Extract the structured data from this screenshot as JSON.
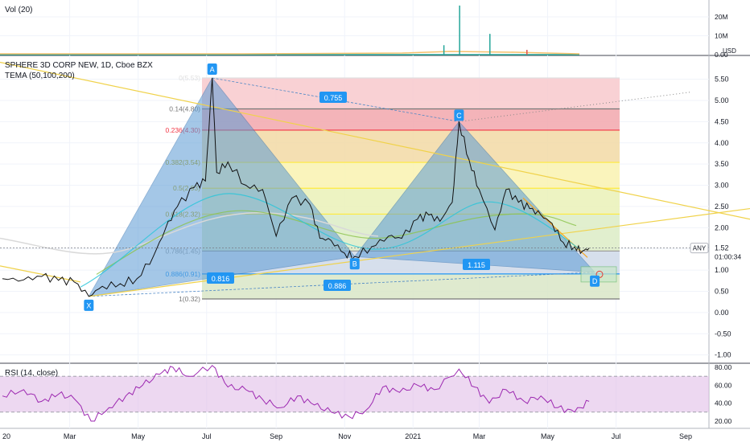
{
  "header": {
    "symbol": "SPHERE 3D CORP NEW, 1D, Cboe BZX",
    "tema": "TEMA (50,100,200)",
    "vol": "Vol (20)",
    "rsi": "RSI (14, close)"
  },
  "price_axis": {
    "ticks": [
      "5.50",
      "5.00",
      "4.50",
      "4.00",
      "3.50",
      "3.00",
      "2.50",
      "2.00",
      "1.50",
      "1.00",
      "0.50",
      "0.00",
      "-0.50",
      "-1.00"
    ],
    "currency": "USD",
    "last_price": "1.52",
    "countdown": "01:00:34",
    "symbol_tag": "ANY"
  },
  "volume_axis": {
    "ticks": [
      "20M",
      "10M",
      "0.00"
    ]
  },
  "rsi_axis": {
    "ticks": [
      "80.00",
      "60.00",
      "40.00",
      "20.00"
    ]
  },
  "time_axis": [
    "20",
    "Mar",
    "May",
    "Jul",
    "Sep",
    "Nov",
    "2021",
    "Mar",
    "May",
    "Jul",
    "Sep"
  ],
  "pattern_points": [
    "X",
    "A",
    "B",
    "C",
    "D"
  ],
  "ratios": {
    "xb": "0.755",
    "ac": "0.816",
    "bd": "0.886",
    "cd": "1.115"
  },
  "fib_levels": [
    {
      "label": "0(5.53)",
      "price": 5.53,
      "color": "#e0e0e0"
    },
    {
      "label": "0.14(4.80)",
      "price": 4.8,
      "color": "#787878"
    },
    {
      "label": "0.236(4.30)",
      "price": 4.3,
      "color": "#f23645"
    },
    {
      "label": "0.382(3.54)",
      "price": 3.54,
      "color": "#ffeb3b"
    },
    {
      "label": "0.5(2.93)",
      "price": 2.93,
      "color": "#ffeb3b"
    },
    {
      "label": "0.618(2.32)",
      "price": 2.32,
      "color": "#ffeb3b"
    },
    {
      "label": "0.786(1.45)",
      "price": 1.45,
      "color": "#9e9e9e"
    },
    {
      "label": "0.886(0.91)",
      "price": 0.91,
      "color": "#2196f3"
    },
    {
      "label": "1(0.32)",
      "price": 0.32,
      "color": "#787878"
    }
  ],
  "colors": {
    "price_line": "#111111",
    "pattern_fill": "#5b9bd5",
    "label_bg": "#2196f3",
    "rsi_line": "#9c27b0",
    "rsi_band": "#e1bee7",
    "trend": "#f0d24a",
    "tema_white": "#d9d9d9"
  },
  "chart_data": [
    {
      "type": "line",
      "title": "SPHERE 3D CORP NEW, 1D, Cboe BZX",
      "x_range": [
        "2020-01-01",
        "2021-09-30"
      ],
      "ylim": [
        -1.0,
        5.75
      ],
      "series": [
        {
          "name": "",
          "points": [
            [
              "2020-01-01",
              0.8
            ],
            [
              "2020-01-20",
              0.77
            ],
            [
              "2020-02-05",
              0.85
            ],
            [
              "2020-02-20",
              0.76
            ],
            [
              "2020-03-05",
              0.72
            ],
            [
              "2020-03-18",
              0.38
            ],
            [
              "2020-03-30",
              0.62
            ],
            [
              "2020-04-15",
              0.68
            ],
            [
              "2020-04-30",
              0.8
            ],
            [
              "2020-05-15",
              1.35
            ],
            [
              "2020-05-25",
              1.95
            ],
            [
              "2020-06-05",
              2.5
            ],
            [
              "2020-06-20",
              2.95
            ],
            [
              "2020-06-30",
              3.1
            ],
            [
              "2020-07-06",
              5.53
            ],
            [
              "2020-07-10",
              3.3
            ],
            [
              "2020-07-20",
              3.55
            ],
            [
              "2020-08-05",
              3.0
            ],
            [
              "2020-08-20",
              2.9
            ],
            [
              "2020-09-01",
              1.8
            ],
            [
              "2020-09-15",
              2.7
            ],
            [
              "2020-10-01",
              2.55
            ],
            [
              "2020-10-10",
              1.75
            ],
            [
              "2020-10-20",
              1.7
            ],
            [
              "2020-11-01",
              1.4
            ],
            [
              "2020-11-10",
              1.32
            ],
            [
              "2020-11-25",
              1.55
            ],
            [
              "2020-12-10",
              1.8
            ],
            [
              "2020-12-22",
              1.75
            ],
            [
              "2021-01-05",
              2.2
            ],
            [
              "2021-01-15",
              2.3
            ],
            [
              "2021-01-25",
              2.15
            ],
            [
              "2021-02-05",
              2.6
            ],
            [
              "2021-02-11",
              4.5
            ],
            [
              "2021-02-20",
              3.6
            ],
            [
              "2021-03-01",
              2.9
            ],
            [
              "2021-03-15",
              1.95
            ],
            [
              "2021-03-25",
              2.9
            ],
            [
              "2021-04-05",
              2.6
            ],
            [
              "2021-04-15",
              2.45
            ],
            [
              "2021-04-25",
              2.3
            ],
            [
              "2021-05-05",
              2.1
            ],
            [
              "2021-05-15",
              1.65
            ],
            [
              "2021-05-25",
              1.55
            ],
            [
              "2021-06-01",
              1.45
            ],
            [
              "2021-06-07",
              1.52
            ]
          ]
        }
      ]
    },
    {
      "type": "bar",
      "title": "Vol (20)",
      "ylim": [
        0,
        27000000
      ],
      "note": "daily volume, mostly small with spikes",
      "spikes": [
        [
          "2021-02-11",
          26000000
        ],
        [
          "2021-01-28",
          5000000
        ],
        [
          "2021-03-10",
          11000000
        ],
        [
          "2021-04-12",
          2500000
        ]
      ]
    },
    {
      "type": "line",
      "title": "RSI (14, close)",
      "ylim": [
        17,
        82
      ],
      "bands": [
        30,
        70
      ],
      "series": [
        {
          "name": "",
          "points": [
            [
              "2020-01-01",
              48
            ],
            [
              "2020-01-20",
              55
            ],
            [
              "2020-02-05",
              42
            ],
            [
              "2020-02-20",
              50
            ],
            [
              "2020-03-05",
              45
            ],
            [
              "2020-03-20",
              20
            ],
            [
              "2020-04-05",
              35
            ],
            [
              "2020-04-20",
              48
            ],
            [
              "2020-05-05",
              60
            ],
            [
              "2020-05-20",
              72
            ],
            [
              "2020-06-01",
              80
            ],
            [
              "2020-06-15",
              70
            ],
            [
              "2020-07-06",
              82
            ],
            [
              "2020-07-20",
              58
            ],
            [
              "2020-08-05",
              55
            ],
            [
              "2020-08-20",
              44
            ],
            [
              "2020-09-05",
              35
            ],
            [
              "2020-09-20",
              48
            ],
            [
              "2020-10-05",
              38
            ],
            [
              "2020-10-20",
              30
            ],
            [
              "2020-11-05",
              25
            ],
            [
              "2020-11-20",
              32
            ],
            [
              "2020-12-05",
              58
            ],
            [
              "2020-12-20",
              52
            ],
            [
              "2021-01-05",
              60
            ],
            [
              "2021-01-20",
              55
            ],
            [
              "2021-02-11",
              78
            ],
            [
              "2021-02-25",
              58
            ],
            [
              "2021-03-10",
              40
            ],
            [
              "2021-03-25",
              55
            ],
            [
              "2021-04-10",
              42
            ],
            [
              "2021-04-25",
              48
            ],
            [
              "2021-05-10",
              35
            ],
            [
              "2021-05-25",
              30
            ],
            [
              "2021-06-07",
              42
            ]
          ]
        }
      ]
    }
  ]
}
